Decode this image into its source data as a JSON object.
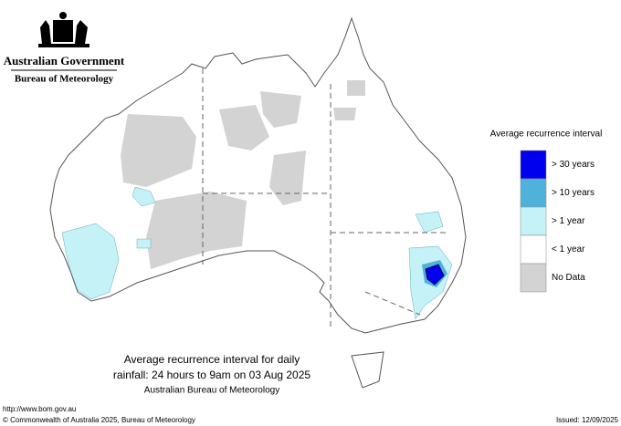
{
  "header": {
    "government": "Australian Government",
    "agency": "Bureau of Meteorology"
  },
  "legend": {
    "title": "Average recurrence interval",
    "items": [
      {
        "label": "> 30 years",
        "color": "#0000ee"
      },
      {
        "label": "> 10 years",
        "color": "#4fb3d9"
      },
      {
        "label": "> 1 year",
        "color": "#c4f2f7"
      },
      {
        "label": "< 1 year",
        "color": "#ffffff"
      },
      {
        "label": "No Data",
        "color": "#d3d3d3"
      }
    ]
  },
  "caption": {
    "line1": "Average recurrence interval for daily",
    "line2": "rainfall: 24 hours to 9am on 03 Aug 2025",
    "line3": "Australian Bureau of Meteorology"
  },
  "footer": {
    "url": "http://www.bom.gov.au",
    "copyright": "© Commonwealth of Australia 2025, Bureau of Meteorology",
    "issued": "Issued: 12/09/2025"
  }
}
